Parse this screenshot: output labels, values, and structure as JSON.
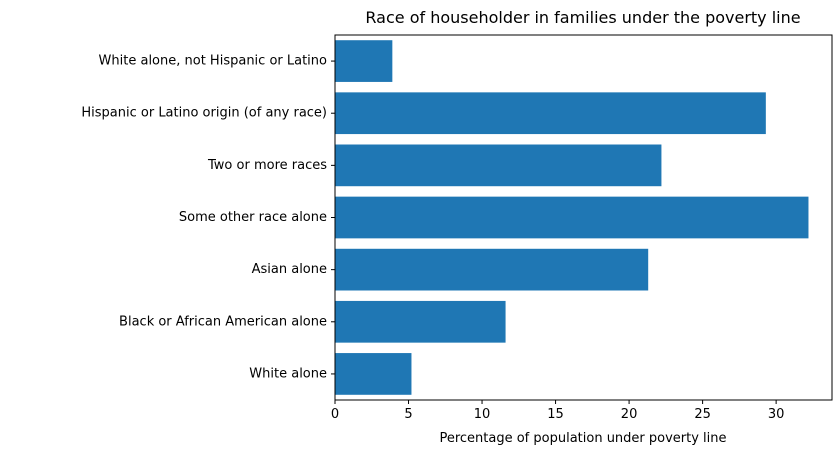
{
  "chart_data": {
    "type": "bar",
    "orientation": "horizontal",
    "title": "Race of householder in families under the poverty line",
    "xlabel": "Percentage of population under poverty line",
    "ylabel": "",
    "categories": [
      "White alone",
      "Black or African American alone",
      "Asian alone",
      "Some other race alone",
      "Two or more races",
      "Hispanic or Latino origin (of any race)",
      "White alone, not Hispanic or Latino"
    ],
    "values": [
      5.2,
      11.6,
      21.3,
      32.2,
      22.2,
      29.3,
      3.9
    ],
    "xlim": [
      0,
      33.8
    ],
    "xticks": [
      0,
      5,
      10,
      15,
      20,
      25,
      30
    ],
    "bar_color": "#1f77b4",
    "grid": false
  }
}
